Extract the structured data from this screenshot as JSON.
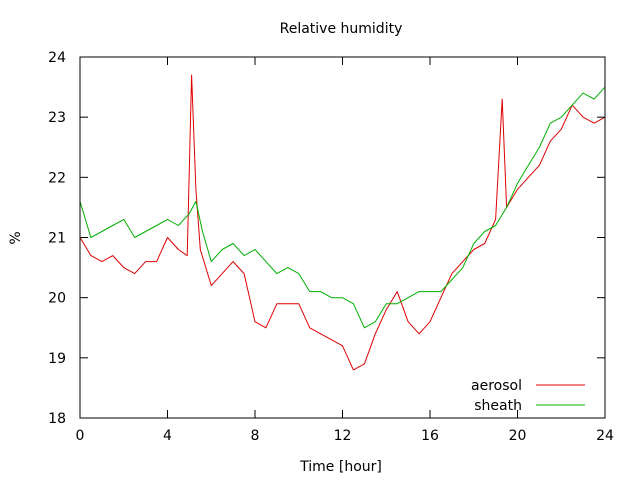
{
  "chart_data": {
    "type": "line",
    "title": "Relative humidity",
    "xlabel": "Time [hour]",
    "ylabel": "%",
    "xlim": [
      0,
      24
    ],
    "ylim": [
      18,
      24
    ],
    "xticks": [
      0,
      4,
      8,
      12,
      16,
      20,
      24
    ],
    "yticks": [
      18,
      19,
      20,
      21,
      22,
      23,
      24
    ],
    "legend_position": "bottom-right",
    "grid": false,
    "series": [
      {
        "name": "aerosol",
        "color": "#e00000",
        "x": [
          0,
          0.5,
          1,
          1.5,
          2,
          2.5,
          3,
          3.5,
          4,
          4.5,
          4.9,
          5.1,
          5.3,
          5.5,
          6,
          6.5,
          7,
          7.5,
          8,
          8.5,
          9,
          9.5,
          10,
          10.5,
          11,
          11.5,
          12,
          12.5,
          13,
          13.5,
          14,
          14.5,
          15,
          15.5,
          16,
          16.5,
          17,
          17.5,
          18,
          18.5,
          19,
          19.3,
          19.5,
          20,
          20.5,
          21,
          21.5,
          22,
          22.5,
          23,
          23.5,
          24
        ],
        "y": [
          21.0,
          20.7,
          20.6,
          20.7,
          20.5,
          20.4,
          20.6,
          20.6,
          21.0,
          20.8,
          20.7,
          23.7,
          21.8,
          20.8,
          20.2,
          20.4,
          20.6,
          20.4,
          19.6,
          19.5,
          19.9,
          19.9,
          19.9,
          19.5,
          19.4,
          19.3,
          19.2,
          18.8,
          18.9,
          19.4,
          19.8,
          20.1,
          19.6,
          19.4,
          19.6,
          20.0,
          20.4,
          20.6,
          20.8,
          20.9,
          21.3,
          23.3,
          21.5,
          21.8,
          22.0,
          22.2,
          22.6,
          22.8,
          23.2,
          23.0,
          22.9,
          23.0
        ]
      },
      {
        "name": "sheath",
        "color": "#00b000",
        "x": [
          0,
          0.5,
          1,
          1.5,
          2,
          2.5,
          3,
          3.5,
          4,
          4.5,
          5,
          5.3,
          5.6,
          6,
          6.5,
          7,
          7.5,
          8,
          8.5,
          9,
          9.5,
          10,
          10.5,
          11,
          11.5,
          12,
          12.5,
          13,
          13.5,
          14,
          14.5,
          15,
          15.5,
          16,
          16.5,
          17,
          17.5,
          18,
          18.5,
          19,
          19.5,
          20,
          20.5,
          21,
          21.5,
          22,
          22.5,
          23,
          23.5,
          24
        ],
        "y": [
          21.6,
          21.0,
          21.1,
          21.2,
          21.3,
          21.0,
          21.1,
          21.2,
          21.3,
          21.2,
          21.4,
          21.6,
          21.1,
          20.6,
          20.8,
          20.9,
          20.7,
          20.8,
          20.6,
          20.4,
          20.5,
          20.4,
          20.1,
          20.1,
          20.0,
          20.0,
          19.9,
          19.5,
          19.6,
          19.9,
          19.9,
          20.0,
          20.1,
          20.1,
          20.1,
          20.3,
          20.5,
          20.9,
          21.1,
          21.2,
          21.5,
          21.9,
          22.2,
          22.5,
          22.9,
          23.0,
          23.2,
          23.4,
          23.3,
          23.5
        ]
      }
    ]
  }
}
